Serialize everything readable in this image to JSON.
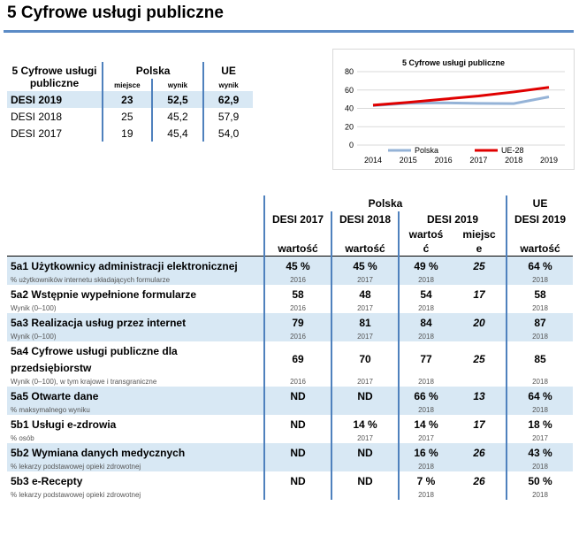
{
  "title": "5 Cyfrowe usługi publiczne",
  "summary": {
    "corner_label": "5 Cyfrowe usługi publiczne",
    "group_poland": "Polska",
    "group_eu": "UE",
    "sub_rank": "miejsce",
    "sub_score": "wynik",
    "sub_eu_score": "wynik",
    "rows": [
      {
        "label": "DESI 2019",
        "rank": "23",
        "score": "52,5",
        "eu": "62,9"
      },
      {
        "label": "DESI 2018",
        "rank": "25",
        "score": "45,2",
        "eu": "57,9"
      },
      {
        "label": "DESI 2017",
        "rank": "19",
        "score": "45,4",
        "eu": "54,0"
      }
    ]
  },
  "chart_data": {
    "type": "line",
    "title": "5 Cyfrowe usługi publiczne",
    "x": [
      "2014",
      "2015",
      "2016",
      "2017",
      "2018",
      "2019"
    ],
    "ylim": [
      0,
      80
    ],
    "yticks": [
      "0",
      "20",
      "40",
      "60",
      "80"
    ],
    "series": [
      {
        "name": "Polska",
        "color": "#95b3d7",
        "values": [
          43,
          45.5,
          46,
          45.4,
          45.2,
          52.5
        ]
      },
      {
        "name": "UE-28",
        "color": "#e00000",
        "values": [
          43.5,
          46.5,
          50,
          53.5,
          57.9,
          62.9
        ]
      }
    ],
    "legend": "bottom"
  },
  "main": {
    "group_poland": "Polska",
    "group_eu": "UE",
    "col_2017": "DESI 2017",
    "col_2018": "DESI 2018",
    "col_2019": "DESI 2019",
    "col_eu": "DESI 2019",
    "sub_value_2017": "wartość",
    "sub_value_2018": "wartość",
    "sub_value_2019_a": "wartoś",
    "sub_value_2019_b": "ć",
    "sub_rank_a": "miejsc",
    "sub_rank_b": "e",
    "sub_value_eu": "wartość",
    "rows": [
      {
        "name": "5a1 Użytkownicy administracji elektronicznej",
        "note": "% użytkowników internetu składających formularze",
        "v17": "45 %",
        "y17": "2016",
        "v18": "45 %",
        "y18": "2017",
        "v19": "49 %",
        "y19": "2018",
        "rank": "25",
        "eu": "64 %",
        "yeu": "2018"
      },
      {
        "name": "5a2 Wstępnie wypełnione formularze",
        "note": "Wynik (0–100)",
        "v17": "58",
        "y17": "2016",
        "v18": "48",
        "y18": "2017",
        "v19": "54",
        "y19": "2018",
        "rank": "17",
        "eu": "58",
        "yeu": "2018"
      },
      {
        "name": "5a3 Realizacja usług przez internet",
        "note": "Wynik (0–100)",
        "v17": "79",
        "y17": "2016",
        "v18": "81",
        "y18": "2017",
        "v19": "84",
        "y19": "2018",
        "rank": "20",
        "eu": "87",
        "yeu": "2018"
      },
      {
        "name_a": "5a4 Cyfrowe usługi publiczne dla",
        "name_b": "przedsiębiorstw",
        "note": "Wynik (0–100), w tym krajowe i transgraniczne",
        "v17": "69",
        "y17": "2016",
        "v18": "70",
        "y18": "2017",
        "v19": "77",
        "y19": "2018",
        "rank": "25",
        "eu": "85",
        "yeu": "2018"
      },
      {
        "name": "5a5 Otwarte dane",
        "note": "% maksymalnego wyniku",
        "v17": "ND",
        "y17": "",
        "v18": "ND",
        "y18": "",
        "v19": "66 %",
        "y19": "2018",
        "rank": "13",
        "eu": "64 %",
        "yeu": "2018"
      },
      {
        "name": "5b1 Usługi e-zdrowia",
        "note": "% osób",
        "v17": "ND",
        "y17": "",
        "v18": "14 %",
        "y18": "2017",
        "v19": "14 %",
        "y19": "2017",
        "rank": "17",
        "eu": "18 %",
        "yeu": "2017"
      },
      {
        "name": "5b2 Wymiana danych medycznych",
        "note": "% lekarzy podstawowej opieki zdrowotnej",
        "v17": "ND",
        "y17": "",
        "v18": "ND",
        "y18": "",
        "v19": "16 %",
        "y19": "2018",
        "rank": "26",
        "eu": "43 %",
        "yeu": "2018"
      },
      {
        "name": "5b3 e-Recepty",
        "note": "% lekarzy podstawowej opieki zdrowotnej",
        "v17": "ND",
        "y17": "",
        "v18": "ND",
        "y18": "",
        "v19": "7 %",
        "y19": "2018",
        "rank": "26",
        "eu": "50 %",
        "yeu": "2018"
      }
    ]
  }
}
